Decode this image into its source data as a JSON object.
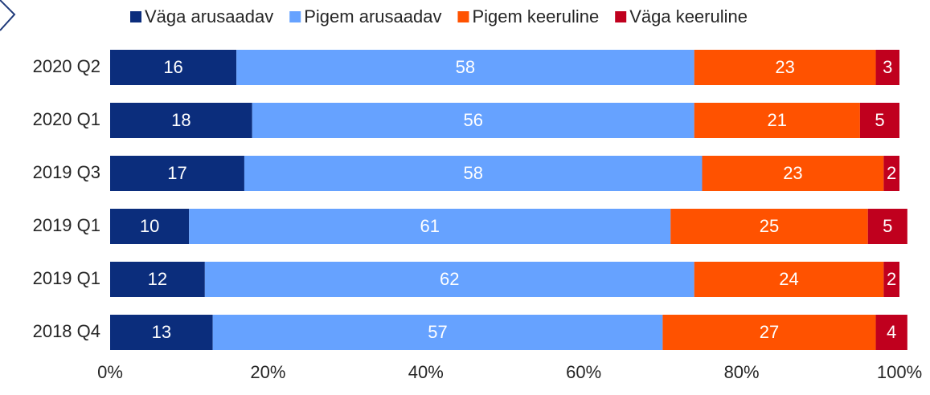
{
  "chart_data": {
    "type": "stacked_barh",
    "categories": [
      "2020 Q2",
      "2020 Q1",
      "2019 Q3",
      "2019 Q1",
      "2019 Q1",
      "2018 Q4"
    ],
    "series": [
      {
        "name": "Väga arusaadav",
        "color": "#0b2d7c",
        "values": [
          16,
          18,
          17,
          10,
          12,
          13
        ]
      },
      {
        "name": "Pigem arusaadav",
        "color": "#66a2ff",
        "values": [
          58,
          56,
          58,
          61,
          62,
          57
        ]
      },
      {
        "name": "Pigem keeruline",
        "color": "#ff5200",
        "values": [
          23,
          21,
          23,
          25,
          24,
          27
        ]
      },
      {
        "name": "Väga keeruline",
        "color": "#c0001e",
        "values": [
          3,
          5,
          2,
          5,
          2,
          4
        ]
      }
    ],
    "xlim": [
      0,
      100
    ],
    "xticks": [
      {
        "value": 0,
        "label": "0%"
      },
      {
        "value": 20,
        "label": "20%"
      },
      {
        "value": 40,
        "label": "40%"
      },
      {
        "value": 60,
        "label": "60%"
      },
      {
        "value": 80,
        "label": "80%"
      },
      {
        "value": 100,
        "label": "100%"
      }
    ],
    "legend": "top"
  }
}
